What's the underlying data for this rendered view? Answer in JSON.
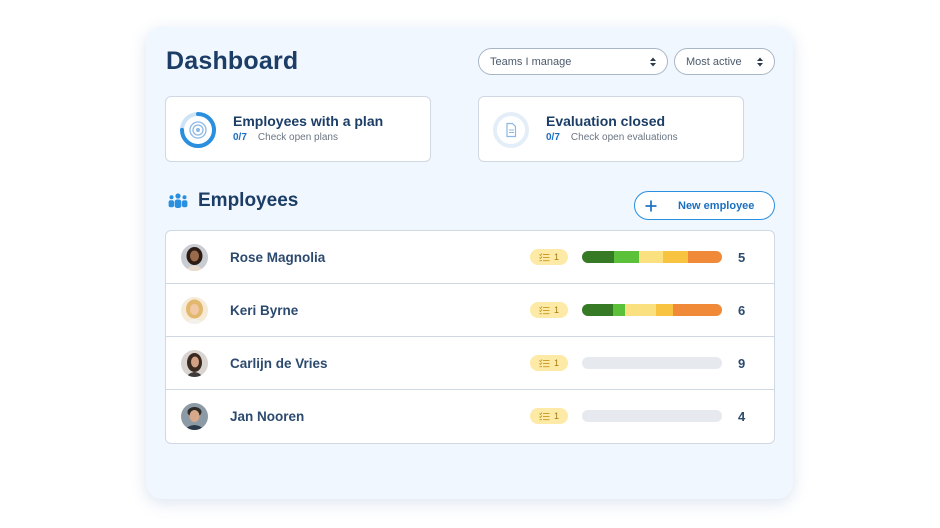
{
  "header": {
    "title": "Dashboard"
  },
  "filters": {
    "team": "Teams I manage",
    "sort": "Most active"
  },
  "cards": [
    {
      "title": "Employees with a plan",
      "count": "0/7",
      "link": "Check open plans",
      "icon": "target-icon",
      "progress": 0.75
    },
    {
      "title": "Evaluation closed",
      "count": "0/7",
      "link": "Check open evaluations",
      "icon": "document-icon"
    }
  ],
  "employees_section": {
    "title": "Employees",
    "new_button": "New employee"
  },
  "colors": {
    "accent": "#2b8fe0",
    "dark_green": "#367a25",
    "green": "#5cc13a",
    "light_yellow": "#fbe07f",
    "yellow": "#f8c340",
    "orange": "#f08a38",
    "empty": "#e6e9ee"
  },
  "employees": [
    {
      "name": "Rose Magnolia",
      "badge": "1",
      "score": "5",
      "segments": [
        {
          "color": "dark_green",
          "value": 0.23
        },
        {
          "color": "green",
          "value": 0.18
        },
        {
          "color": "light_yellow",
          "value": 0.17
        },
        {
          "color": "yellow",
          "value": 0.18
        },
        {
          "color": "orange",
          "value": 0.24
        }
      ]
    },
    {
      "name": "Keri Byrne",
      "badge": "1",
      "score": "6",
      "segments": [
        {
          "color": "dark_green",
          "value": 0.22
        },
        {
          "color": "green",
          "value": 0.09
        },
        {
          "color": "light_yellow",
          "value": 0.22
        },
        {
          "color": "yellow",
          "value": 0.12
        },
        {
          "color": "orange",
          "value": 0.35
        }
      ]
    },
    {
      "name": "Carlijn de Vries",
      "badge": "1",
      "score": "9",
      "segments": []
    },
    {
      "name": "Jan Nooren",
      "badge": "1",
      "score": "4",
      "segments": []
    }
  ]
}
